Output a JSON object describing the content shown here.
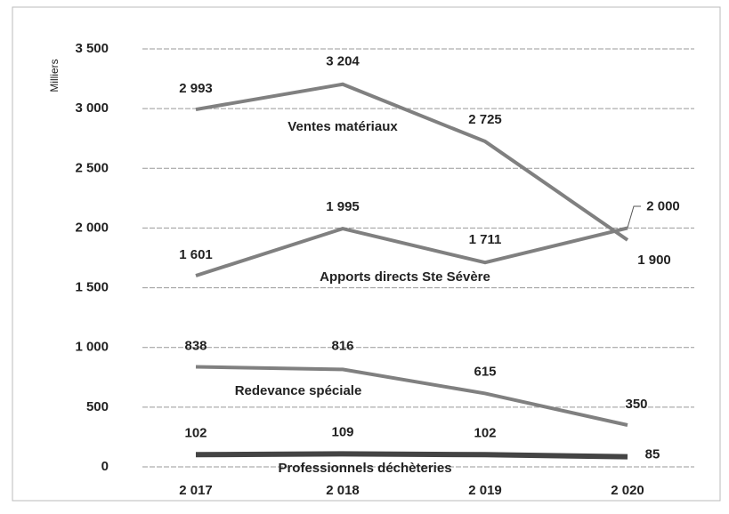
{
  "chart_data": {
    "type": "line",
    "y_label": "Milliers",
    "categories": [
      "2 017",
      "2 018",
      "2 019",
      "2 020"
    ],
    "ylim": [
      0,
      3500
    ],
    "yticks": [
      0,
      500,
      {
        "value": 1000,
        "label": "1 000"
      },
      {
        "value": 1500,
        "label": "1 500"
      },
      {
        "value": 2000,
        "label": "2 000"
      },
      {
        "value": 2500,
        "label": "2 500"
      },
      {
        "value": 3000,
        "label": "3 000"
      },
      {
        "value": 3500,
        "label": "3 500"
      }
    ],
    "grid": true,
    "series": [
      {
        "name": "Ventes matériaux",
        "color": "#808080",
        "values": [
          2993,
          3204,
          2725,
          1900
        ],
        "value_labels": [
          "2 993",
          "3 204",
          "2 725",
          "1 900"
        ]
      },
      {
        "name": "Apports directs Ste Sévère",
        "color": "#808080",
        "values": [
          1601,
          1995,
          1711,
          2000
        ],
        "value_labels": [
          "1 601",
          "1 995",
          "1 711",
          "2 000"
        ]
      },
      {
        "name": "Redevance spéciale",
        "color": "#808080",
        "values": [
          838,
          816,
          615,
          350
        ]
      },
      {
        "name": "Professionnels déchèteries",
        "color": "#444444",
        "values": [
          102,
          109,
          102,
          85
        ]
      }
    ]
  }
}
